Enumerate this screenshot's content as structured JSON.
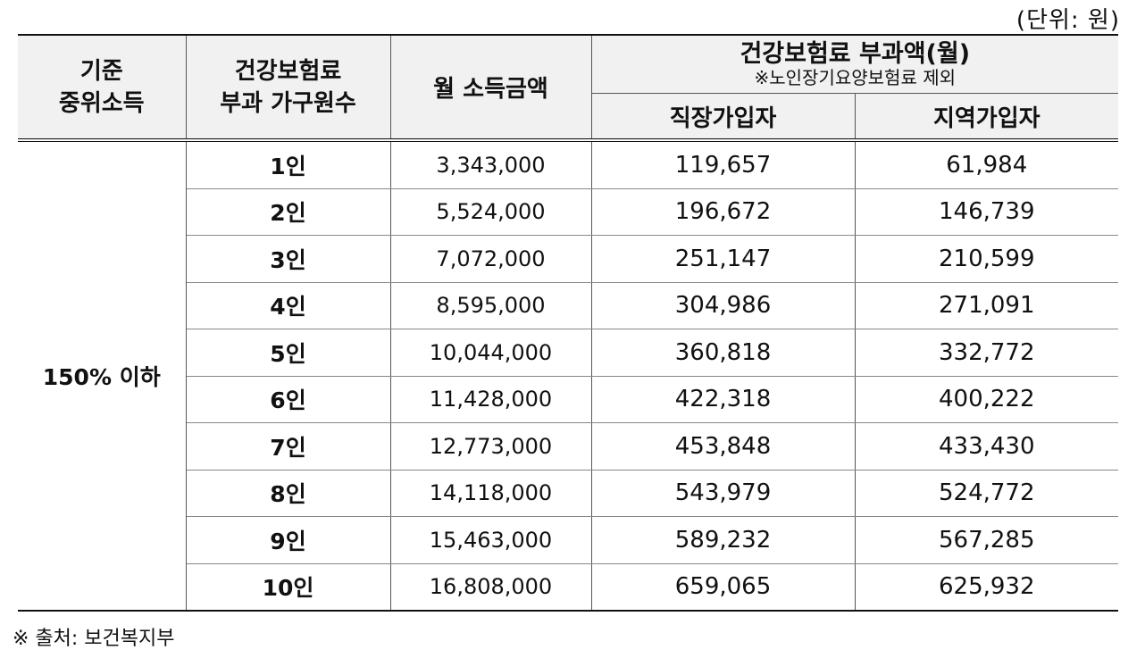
{
  "unit_label": "(단위: 원)",
  "header": {
    "base_income": [
      "기준",
      "중위소득"
    ],
    "household": [
      "건강보험료",
      "부과 가구원수"
    ],
    "monthly_income": "월 소득금액",
    "premium_group": "건강보험료 부과액(월)",
    "premium_note": "※노인장기요양보험료 제외",
    "employee": "직장가입자",
    "regional": "지역가입자"
  },
  "base_value": "150% 이하",
  "rows": [
    {
      "size": "1인",
      "income": "3,343,000",
      "employee": "119,657",
      "regional": "61,984"
    },
    {
      "size": "2인",
      "income": "5,524,000",
      "employee": "196,672",
      "regional": "146,739"
    },
    {
      "size": "3인",
      "income": "7,072,000",
      "employee": "251,147",
      "regional": "210,599"
    },
    {
      "size": "4인",
      "income": "8,595,000",
      "employee": "304,986",
      "regional": "271,091"
    },
    {
      "size": "5인",
      "income": "10,044,000",
      "employee": "360,818",
      "regional": "332,772"
    },
    {
      "size": "6인",
      "income": "11,428,000",
      "employee": "422,318",
      "regional": "400,222"
    },
    {
      "size": "7인",
      "income": "12,773,000",
      "employee": "453,848",
      "regional": "433,430"
    },
    {
      "size": "8인",
      "income": "14,118,000",
      "employee": "543,979",
      "regional": "524,772"
    },
    {
      "size": "9인",
      "income": "15,463,000",
      "employee": "589,232",
      "regional": "567,285"
    },
    {
      "size": "10인",
      "income": "16,808,000",
      "employee": "659,065",
      "regional": "625,932"
    }
  ],
  "source": "※ 출처: 보건복지부"
}
